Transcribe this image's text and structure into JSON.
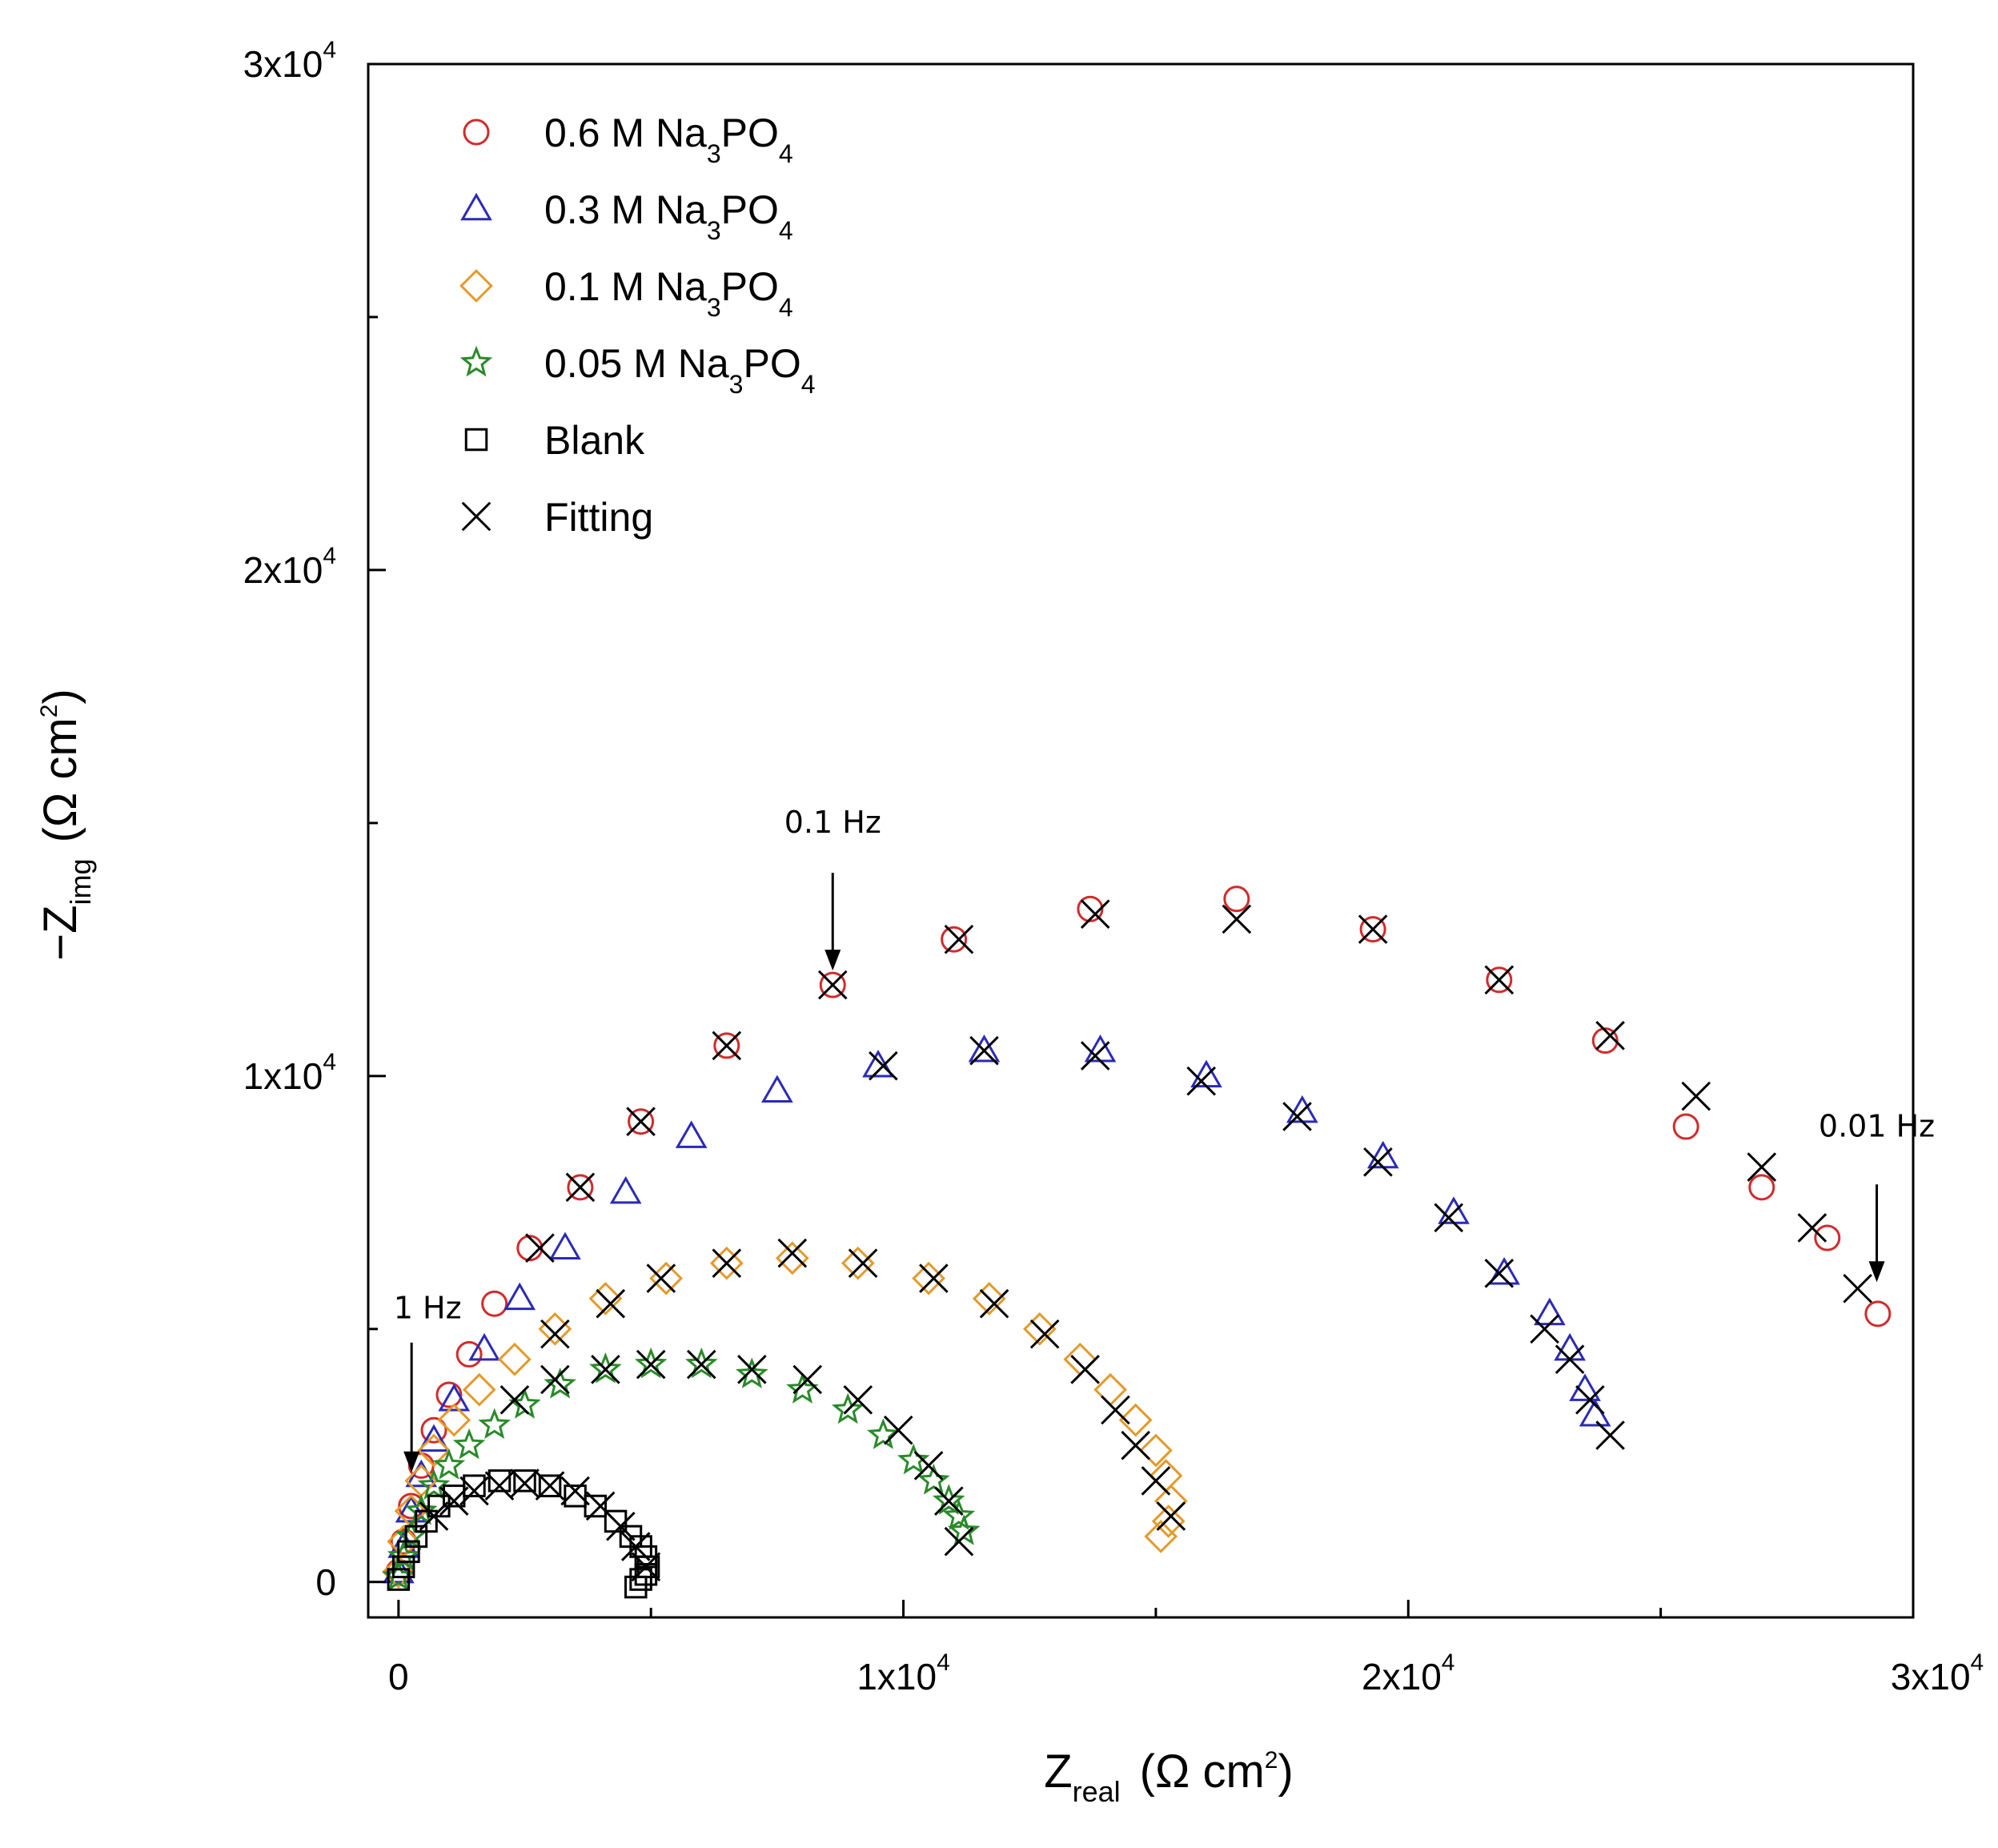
{
  "chart_data": {
    "type": "scatter",
    "xlabel": {
      "main": "Z",
      "sub": "real",
      "unit": "(Ω cm",
      "unit_sup": "2",
      "unit_close": ")"
    },
    "ylabel": {
      "prefix": "−Z",
      "sub": "img",
      "unit": "(Ω cm",
      "unit_sup": "2",
      "unit_close": ")"
    },
    "xlim": [
      -600,
      30000
    ],
    "ylim": [
      -700,
      30000
    ],
    "x_ticks": [
      {
        "value": 0,
        "base": "0",
        "exp": ""
      },
      {
        "value": 10000,
        "base": "1x10",
        "exp": "4"
      },
      {
        "value": 20000,
        "base": "2x10",
        "exp": "4"
      },
      {
        "value": 30000,
        "base": "3x10",
        "exp": "4"
      }
    ],
    "y_ticks": [
      {
        "value": 0,
        "base": "0",
        "exp": ""
      },
      {
        "value": 10000,
        "base": "1x10",
        "exp": "4"
      },
      {
        "value": 20000,
        "base": "2x10",
        "exp": "4"
      },
      {
        "value": 30000,
        "base": "3x10",
        "exp": "4"
      }
    ],
    "minor_x_ticks": [
      5000,
      15000,
      25000
    ],
    "minor_y_ticks": [
      5000,
      15000,
      25000
    ],
    "legend_position": "top-left",
    "series": [
      {
        "name": "0.6 M Na3PO4",
        "label_main": "0.6 M Na",
        "label_sub1": "3",
        "label_mid": "PO",
        "label_sub2": "4",
        "marker": "circle",
        "color": "#d22b2b",
        "x": [
          0,
          100,
          250,
          450,
          700,
          1000,
          1400,
          1900,
          2600,
          3600,
          4800,
          6500,
          8600,
          11000,
          13700,
          16600,
          19300,
          21800,
          23900,
          25500,
          27000,
          28300,
          29300
        ],
        "y": [
          200,
          800,
          1500,
          2300,
          3000,
          3700,
          4500,
          5500,
          6600,
          7800,
          9100,
          10600,
          11800,
          12700,
          13300,
          13500,
          12900,
          11900,
          10700,
          9000,
          7800,
          6800,
          5300
        ]
      },
      {
        "name": "0.3 M Na3PO4",
        "label_main": "0.3 M Na",
        "label_sub1": "3",
        "label_mid": "PO",
        "label_sub2": "4",
        "marker": "triangle",
        "color": "#2a2ab8",
        "x": [
          0,
          100,
          250,
          450,
          700,
          1100,
          1700,
          2400,
          3300,
          4500,
          5800,
          7500,
          9500,
          11600,
          13900,
          16000,
          17900,
          19500,
          20900,
          21900,
          22800,
          23200,
          23500,
          23700
        ],
        "y": [
          200,
          700,
          1400,
          2100,
          2800,
          3600,
          4600,
          5600,
          6600,
          7700,
          8800,
          9700,
          10200,
          10500,
          10500,
          10000,
          9300,
          8400,
          7300,
          6100,
          5300,
          4600,
          3800,
          3300
        ]
      },
      {
        "name": "0.1 M Na3PO4",
        "label_main": "0.1 M Na",
        "label_sub1": "3",
        "label_mid": "PO",
        "label_sub2": "4",
        "marker": "diamond",
        "color": "#e39a2a",
        "x": [
          0,
          100,
          250,
          450,
          700,
          1100,
          1600,
          2300,
          3100,
          4100,
          5300,
          6500,
          7800,
          9100,
          10500,
          11700,
          12700,
          13500,
          14100,
          14600,
          15000,
          15200,
          15300,
          15250,
          15100
        ],
        "y": [
          200,
          800,
          1400,
          2000,
          2600,
          3200,
          3800,
          4400,
          5000,
          5600,
          6000,
          6300,
          6400,
          6300,
          6000,
          5600,
          5000,
          4400,
          3800,
          3200,
          2600,
          2100,
          1600,
          1200,
          900
        ]
      },
      {
        "name": "0.05 M Na3PO4",
        "label_main": "0.05 M Na",
        "label_sub1": "3",
        "label_mid": "PO",
        "label_sub2": "4",
        "marker": "star",
        "color": "#2a8a2a",
        "x": [
          0,
          100,
          250,
          450,
          700,
          1000,
          1400,
          1900,
          2500,
          3200,
          4100,
          5000,
          6000,
          7000,
          8000,
          8900,
          9600,
          10200,
          10600,
          10900,
          11100,
          11200
        ],
        "y": [
          100,
          500,
          900,
          1400,
          1900,
          2300,
          2700,
          3100,
          3500,
          3900,
          4200,
          4300,
          4300,
          4100,
          3800,
          3400,
          2900,
          2400,
          2000,
          1600,
          1300,
          1000
        ]
      },
      {
        "name": "Blank",
        "label_main": "Blank",
        "label_sub1": "",
        "label_mid": "",
        "label_sub2": "",
        "marker": "square",
        "color": "#000000",
        "x": [
          0,
          100,
          200,
          350,
          550,
          800,
          1100,
          1500,
          2000,
          2500,
          3000,
          3500,
          3900,
          4300,
          4600,
          4800,
          4900,
          4950,
          4900,
          4800,
          4700
        ],
        "y": [
          50,
          300,
          600,
          900,
          1200,
          1500,
          1700,
          1900,
          2000,
          2000,
          1900,
          1700,
          1500,
          1200,
          900,
          700,
          500,
          300,
          150,
          50,
          -100
        ]
      },
      {
        "name": "Fitting",
        "label_main": "Fitting",
        "label_sub1": "",
        "label_mid": "",
        "label_sub2": "",
        "marker": "x",
        "color": "#000000",
        "x": [
          2800,
          3600,
          4800,
          6500,
          8600,
          11100,
          13800,
          16600,
          19300,
          21800,
          24000,
          25700,
          27000,
          28000,
          28900,
          9600,
          11600,
          13800,
          15900,
          17800,
          19400,
          20800,
          21800,
          22700,
          23200,
          23600,
          24000,
          3100,
          4200,
          5200,
          6500,
          7800,
          9200,
          10600,
          11800,
          12800,
          13600,
          14200,
          14600,
          15000,
          15300,
          2300,
          3100,
          4100,
          5000,
          6000,
          7000,
          8100,
          9100,
          9900,
          10500,
          10900,
          11100,
          700,
          1100,
          1500,
          2000,
          2500,
          3000,
          3500,
          4000,
          4400,
          4700,
          4900
        ],
        "y": [
          6600,
          7800,
          9100,
          10600,
          11800,
          12700,
          13200,
          13100,
          12900,
          11900,
          10800,
          9600,
          8200,
          7000,
          5800,
          10200,
          10500,
          10400,
          9900,
          9200,
          8300,
          7200,
          6100,
          5000,
          4400,
          3600,
          2900,
          4900,
          5500,
          6000,
          6300,
          6500,
          6300,
          6000,
          5500,
          4900,
          4200,
          3400,
          2700,
          2000,
          1300,
          3600,
          4000,
          4200,
          4300,
          4300,
          4200,
          4000,
          3600,
          3000,
          2300,
          1600,
          800,
          1300,
          1600,
          1800,
          1900,
          1950,
          1900,
          1800,
          1500,
          1100,
          700,
          300
        ]
      }
    ],
    "annotations": [
      {
        "text": "0.1 Hz",
        "x": 8600,
        "y": 11800
      },
      {
        "text": "0.01 Hz",
        "x": 29200,
        "y": 5800
      },
      {
        "text": "1 Hz",
        "x": 100,
        "y": 2200
      }
    ]
  }
}
